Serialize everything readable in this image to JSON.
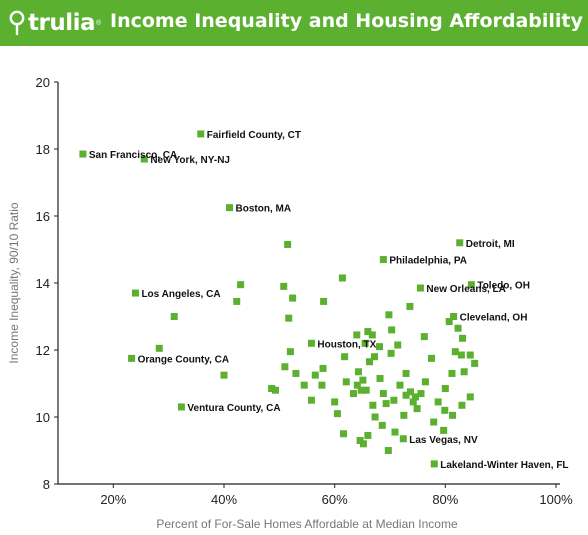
{
  "header": {
    "brand": "trulia",
    "title": "Income Inequality and Housing Affordability",
    "accent_color": "#5bb02f",
    "logo_icon": "location-pin-icon"
  },
  "chart_data": {
    "type": "scatter",
    "title": "Income Inequality and Housing Affordability",
    "xlabel": "Percent of For-Sale Homes Affordable at Median Income",
    "ylabel": "Income Inequality, 90/10 Ratio",
    "xlim": [
      0.1,
      1.0
    ],
    "ylim": [
      8,
      20
    ],
    "x_ticks": [
      0.2,
      0.4,
      0.6,
      0.8,
      1.0
    ],
    "x_tick_labels": [
      "20%",
      "40%",
      "60%",
      "80%",
      "100%"
    ],
    "y_ticks": [
      8,
      10,
      12,
      14,
      16,
      18,
      20
    ],
    "y_tick_labels": [
      "8",
      "10",
      "12",
      "14",
      "16",
      "18",
      "20"
    ],
    "grid": false,
    "marker_color": "#5bb02f",
    "labeled_points": [
      {
        "label": "San Francisco, CA",
        "x": 0.145,
        "y": 17.85
      },
      {
        "label": "New York, NY-NJ",
        "x": 0.256,
        "y": 17.7
      },
      {
        "label": "Fairfield County, CT",
        "x": 0.358,
        "y": 18.45
      },
      {
        "label": "Boston, MA",
        "x": 0.41,
        "y": 16.25
      },
      {
        "label": "Detroit, MI",
        "x": 0.826,
        "y": 15.2
      },
      {
        "label": "Philadelphia, PA",
        "x": 0.688,
        "y": 14.7
      },
      {
        "label": "Toledo, OH",
        "x": 0.847,
        "y": 13.95
      },
      {
        "label": "New Orleans, LA",
        "x": 0.755,
        "y": 13.85
      },
      {
        "label": "Los Angeles, CA",
        "x": 0.24,
        "y": 13.7
      },
      {
        "label": "Cleveland, OH",
        "x": 0.815,
        "y": 13.0
      },
      {
        "label": "Houston, TX",
        "x": 0.558,
        "y": 12.2
      },
      {
        "label": "Orange County, CA",
        "x": 0.233,
        "y": 11.75
      },
      {
        "label": "Ventura County, CA",
        "x": 0.323,
        "y": 10.3
      },
      {
        "label": "Las Vegas, NV",
        "x": 0.724,
        "y": 9.35
      },
      {
        "label": "Lakeland-Winter Haven, FL",
        "x": 0.78,
        "y": 8.6
      }
    ],
    "points": [
      [
        0.31,
        13.0
      ],
      [
        0.283,
        12.05
      ],
      [
        0.4,
        11.25
      ],
      [
        0.43,
        13.95
      ],
      [
        0.423,
        13.45
      ],
      [
        0.515,
        15.15
      ],
      [
        0.508,
        13.9
      ],
      [
        0.524,
        13.55
      ],
      [
        0.517,
        12.95
      ],
      [
        0.58,
        13.45
      ],
      [
        0.614,
        14.15
      ],
      [
        0.52,
        11.95
      ],
      [
        0.51,
        11.5
      ],
      [
        0.493,
        10.8
      ],
      [
        0.486,
        10.85
      ],
      [
        0.53,
        11.3
      ],
      [
        0.545,
        10.95
      ],
      [
        0.565,
        11.25
      ],
      [
        0.579,
        11.45
      ],
      [
        0.558,
        10.5
      ],
      [
        0.577,
        10.95
      ],
      [
        0.6,
        10.45
      ],
      [
        0.605,
        10.1
      ],
      [
        0.616,
        9.5
      ],
      [
        0.64,
        12.45
      ],
      [
        0.655,
        12.2
      ],
      [
        0.66,
        12.55
      ],
      [
        0.668,
        12.45
      ],
      [
        0.681,
        12.1
      ],
      [
        0.698,
        13.05
      ],
      [
        0.703,
        12.6
      ],
      [
        0.714,
        12.15
      ],
      [
        0.702,
        11.9
      ],
      [
        0.618,
        11.8
      ],
      [
        0.621,
        11.05
      ],
      [
        0.634,
        10.7
      ],
      [
        0.643,
        11.35
      ],
      [
        0.651,
        11.1
      ],
      [
        0.663,
        11.65
      ],
      [
        0.672,
        11.8
      ],
      [
        0.682,
        11.15
      ],
      [
        0.688,
        10.7
      ],
      [
        0.693,
        10.4
      ],
      [
        0.707,
        10.5
      ],
      [
        0.718,
        10.95
      ],
      [
        0.729,
        11.3
      ],
      [
        0.737,
        10.75
      ],
      [
        0.742,
        10.45
      ],
      [
        0.749,
        10.25
      ],
      [
        0.756,
        10.7
      ],
      [
        0.764,
        11.05
      ],
      [
        0.641,
        10.95
      ],
      [
        0.648,
        10.8
      ],
      [
        0.657,
        10.8
      ],
      [
        0.669,
        10.35
      ],
      [
        0.673,
        10.0
      ],
      [
        0.646,
        9.3
      ],
      [
        0.652,
        9.2
      ],
      [
        0.66,
        9.45
      ],
      [
        0.686,
        9.75
      ],
      [
        0.697,
        9.0
      ],
      [
        0.709,
        9.55
      ],
      [
        0.725,
        10.05
      ],
      [
        0.736,
        13.3
      ],
      [
        0.762,
        12.4
      ],
      [
        0.729,
        10.65
      ],
      [
        0.807,
        12.85
      ],
      [
        0.823,
        12.65
      ],
      [
        0.831,
        12.35
      ],
      [
        0.818,
        11.95
      ],
      [
        0.829,
        11.85
      ],
      [
        0.845,
        11.85
      ],
      [
        0.853,
        11.6
      ],
      [
        0.834,
        11.35
      ],
      [
        0.812,
        11.3
      ],
      [
        0.8,
        10.85
      ],
      [
        0.787,
        10.45
      ],
      [
        0.799,
        10.2
      ],
      [
        0.813,
        10.05
      ],
      [
        0.83,
        10.35
      ],
      [
        0.845,
        10.6
      ],
      [
        0.775,
        11.75
      ],
      [
        0.779,
        9.85
      ],
      [
        0.797,
        9.6
      ],
      [
        0.746,
        10.6
      ]
    ]
  }
}
